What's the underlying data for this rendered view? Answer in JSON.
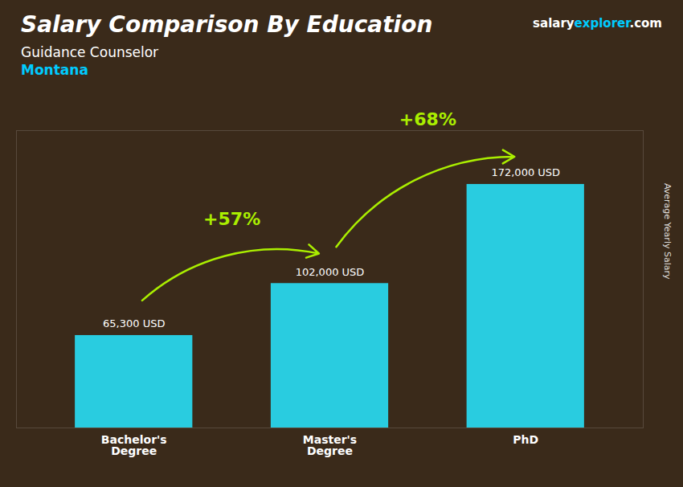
{
  "chart_data": {
    "type": "bar",
    "title": "Salary Comparison By Education",
    "subtitle": [
      {
        "text": "Guidance Counselor",
        "color": "#ffffff"
      },
      {
        "text": "Montana",
        "color": "#00ccff"
      }
    ],
    "categories": [
      "Bachelor's\nDegree",
      "Master's\nDegree",
      "PhD"
    ],
    "values": [
      65300,
      102000,
      172000
    ],
    "value_labels": [
      "65,300 USD",
      "102,000 USD",
      "172,000 USD"
    ],
    "data_labels": true,
    "color": "#29cce0",
    "ylim": [
      0,
      210000
    ],
    "yticks": [],
    "ylabel": "Average Yearly Salary",
    "tick_labels": "x",
    "grid": false,
    "annotations": [
      {
        "text": "+57%",
        "color": "#aaee00"
      },
      {
        "text": "+68%",
        "color": "#aaee00"
      }
    ],
    "brand": [
      {
        "text": "salary",
        "color": "#ffffff"
      },
      {
        "text": "explorer",
        "color": "#00ccff"
      },
      {
        "text": ".com",
        "color": "#ffffff"
      }
    ]
  }
}
